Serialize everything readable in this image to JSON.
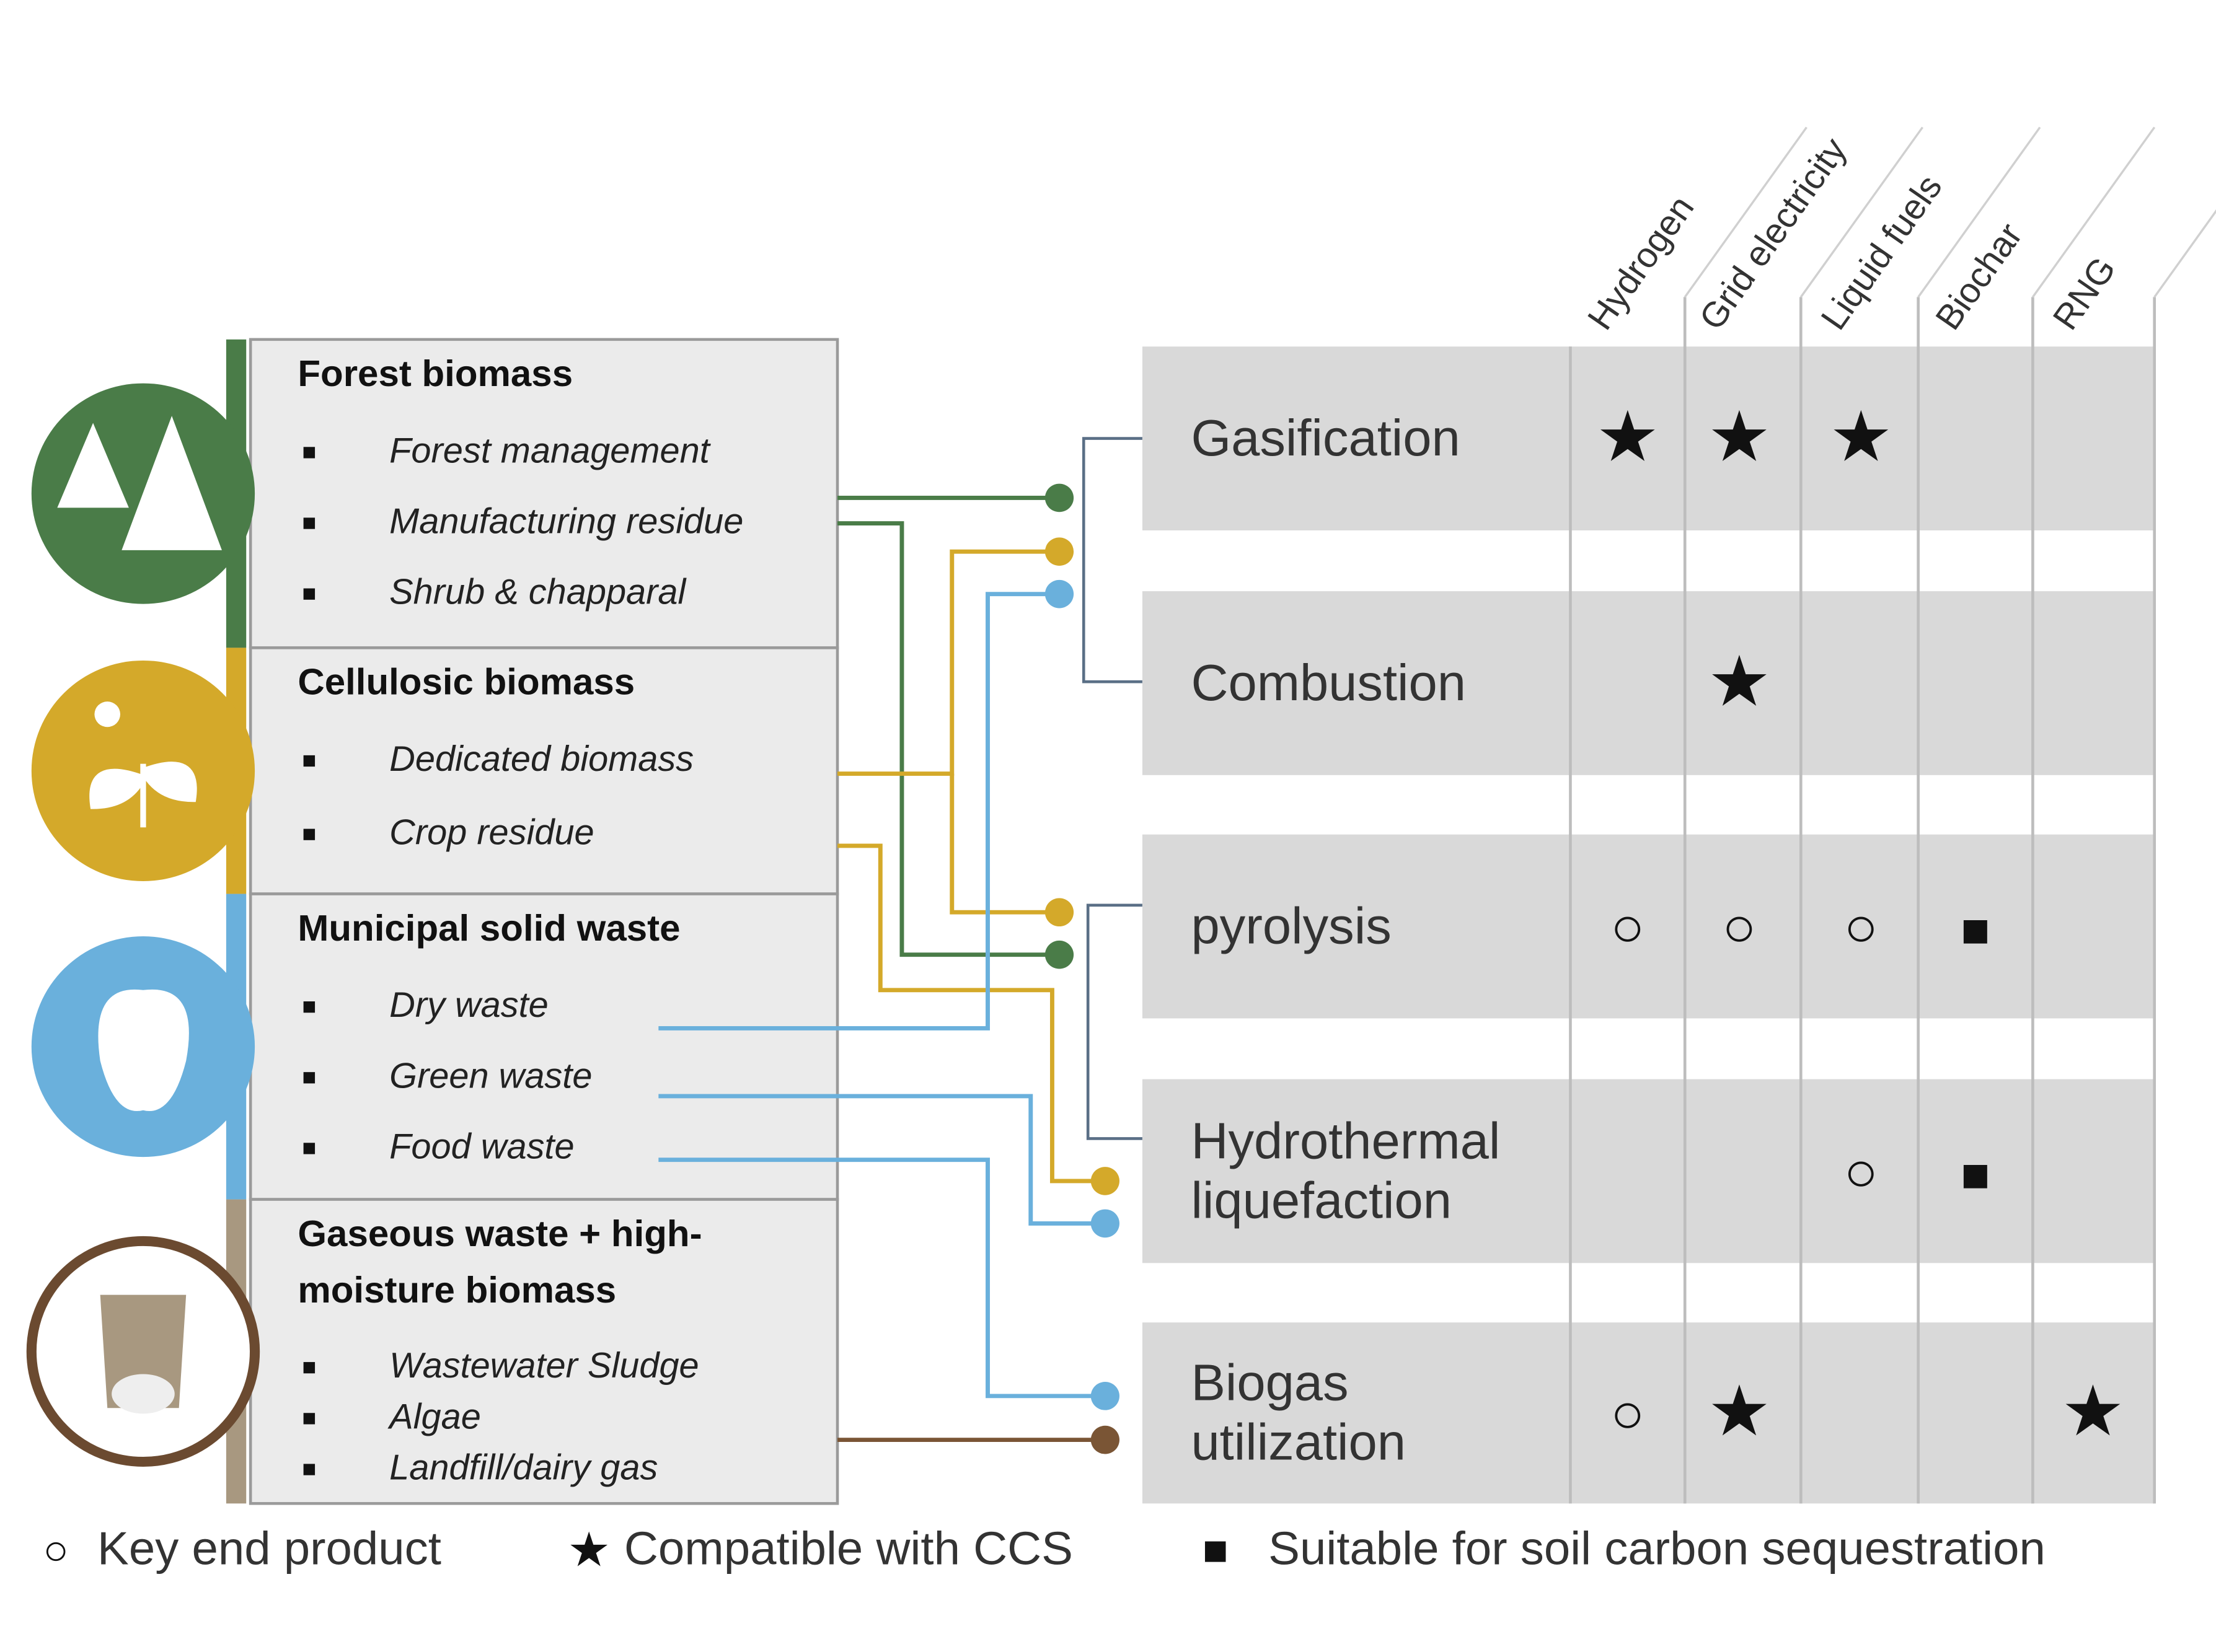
{
  "feedstocks": [
    {
      "title_lines": [
        "Forest biomass"
      ],
      "items": [
        "Forest management",
        "Manufacturing residue",
        "Shrub & chapparal"
      ]
    },
    {
      "title_lines": [
        "Cellulosic biomass"
      ],
      "items": [
        "Dedicated biomass",
        "Crop residue"
      ]
    },
    {
      "title_lines": [
        "Municipal solid waste"
      ],
      "items": [
        "Dry waste",
        "Green waste",
        "Food waste"
      ]
    },
    {
      "title_lines": [
        "Gaseous waste + high-",
        "moisture biomass"
      ],
      "items": [
        "Wastewater Sludge",
        "Algae",
        "Landfill/dairy gas"
      ]
    }
  ],
  "processes": [
    {
      "lines": [
        "Gasification"
      ]
    },
    {
      "lines": [
        "Combustion"
      ]
    },
    {
      "lines": [
        "pyrolysis"
      ]
    },
    {
      "lines": [
        "Hydrothermal",
        "liquefaction"
      ]
    },
    {
      "lines": [
        "Biogas",
        "utilization"
      ]
    }
  ],
  "products": [
    "Hydrogen",
    "Grid electricity",
    "Liquid fuels",
    "Biochar",
    "RNG"
  ],
  "matrix": [
    [
      "★",
      "★",
      "★",
      null,
      null
    ],
    [
      null,
      "★",
      null,
      null,
      null
    ],
    [
      "○",
      "○",
      "○",
      "■",
      null
    ],
    [
      null,
      null,
      "○",
      "■",
      null
    ],
    [
      "○",
      "★",
      null,
      null,
      "★"
    ]
  ],
  "legend": [
    {
      "symbol": "○",
      "label": "Key end product"
    },
    {
      "symbol": "★",
      "label": "Compatible with CCS"
    },
    {
      "symbol": "■",
      "label": "Suitable for soil carbon sequestration"
    }
  ]
}
